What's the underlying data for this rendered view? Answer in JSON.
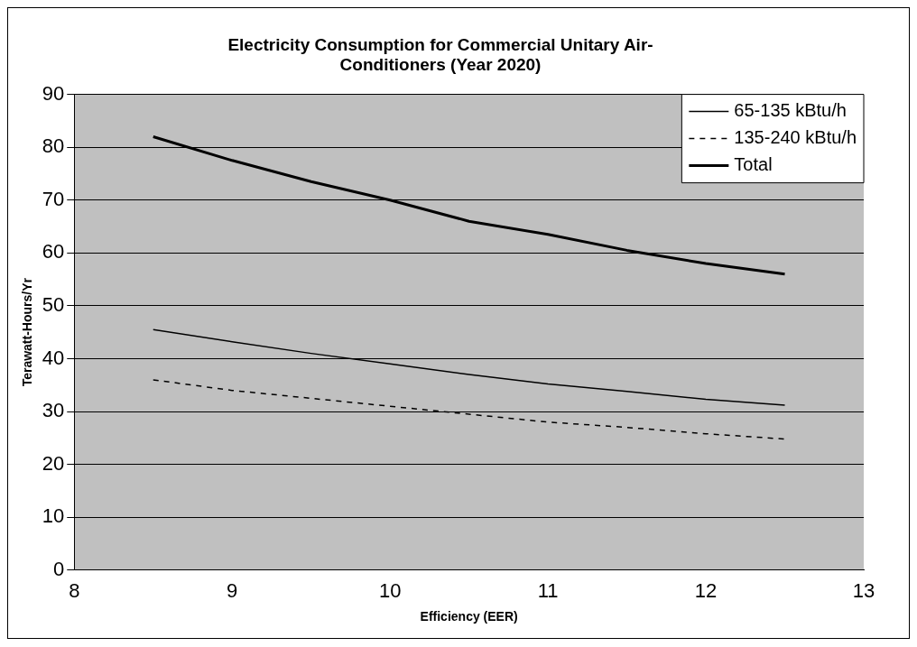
{
  "chart_data": {
    "type": "line",
    "title": [
      "Electricity Consumption for Commercial Unitary Air-",
      "Conditioners (Year 2020)"
    ],
    "xlabel": "Efficiency (EER)",
    "ylabel": "Terawatt-Hours/Yr",
    "x": [
      8.5,
      9,
      9.5,
      10,
      10.5,
      11,
      11.5,
      12,
      12.5
    ],
    "series": [
      {
        "name": "65-135 kBtu/h",
        "color": "#000000",
        "line_style": "solid",
        "values": [
          45.5,
          43.2,
          41,
          39,
          37,
          35.2,
          33.8,
          32.3,
          31.2
        ]
      },
      {
        "name": "135-240 kBtu/h",
        "color": "#000000",
        "line_style": "dashed",
        "values": [
          36,
          34,
          32.5,
          31,
          29.5,
          28,
          27,
          25.8,
          24.8
        ]
      },
      {
        "name": "Total",
        "color": "#000000",
        "line_style": "solid",
        "values": [
          82,
          77.5,
          73.5,
          70,
          66,
          63.5,
          60.5,
          58,
          56
        ]
      }
    ],
    "xlim": [
      8,
      13
    ],
    "xticks": [
      8,
      9,
      10,
      11,
      12,
      13
    ],
    "ylim": [
      0,
      90
    ],
    "yticks": [
      0,
      10,
      20,
      30,
      40,
      50,
      60,
      70,
      80,
      90
    ],
    "grid": "y",
    "legend": "top right",
    "marker": "none"
  }
}
